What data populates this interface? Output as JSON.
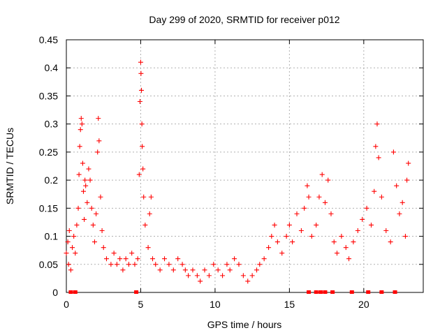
{
  "chart_data": {
    "type": "scatter",
    "title": "Day 299 of 2020, SRMTID for receiver p012",
    "xlabel": "GPS time / hours",
    "ylabel": "SRMTID / TECUs",
    "xlim": [
      0,
      24
    ],
    "ylim": [
      0,
      0.45
    ],
    "xticks": [
      0,
      5,
      10,
      15,
      20
    ],
    "xtick_labels": [
      "0",
      "5",
      "10",
      "15",
      "20"
    ],
    "yticks": [
      0,
      0.05,
      0.1,
      0.15,
      0.2,
      0.25,
      0.3,
      0.35,
      0.4,
      0.45
    ],
    "ytick_labels": [
      "0",
      "0.05",
      "0.1",
      "0.15",
      "0.2",
      "0.25",
      "0.3",
      "0.35",
      "0.4",
      "0.45"
    ],
    "grid": true,
    "marker": "+",
    "color": "#ff0000",
    "series": [
      {
        "name": "SRMTID",
        "points": [
          [
            0.0,
            0.07
          ],
          [
            0.1,
            0.09
          ],
          [
            0.15,
            0.05
          ],
          [
            0.2,
            0.11
          ],
          [
            0.3,
            0.04
          ],
          [
            0.4,
            0.08
          ],
          [
            0.5,
            0.1
          ],
          [
            0.6,
            0.07
          ],
          [
            0.7,
            0.12
          ],
          [
            0.8,
            0.15
          ],
          [
            0.85,
            0.21
          ],
          [
            0.9,
            0.26
          ],
          [
            0.95,
            0.29
          ],
          [
            1.0,
            0.31
          ],
          [
            1.05,
            0.3
          ],
          [
            1.1,
            0.23
          ],
          [
            1.15,
            0.18
          ],
          [
            1.2,
            0.13
          ],
          [
            1.25,
            0.2
          ],
          [
            1.3,
            0.19
          ],
          [
            1.4,
            0.16
          ],
          [
            1.5,
            0.22
          ],
          [
            1.6,
            0.2
          ],
          [
            1.7,
            0.15
          ],
          [
            1.8,
            0.12
          ],
          [
            1.9,
            0.09
          ],
          [
            2.0,
            0.14
          ],
          [
            2.1,
            0.25
          ],
          [
            2.15,
            0.31
          ],
          [
            2.2,
            0.27
          ],
          [
            2.3,
            0.17
          ],
          [
            2.4,
            0.11
          ],
          [
            2.5,
            0.08
          ],
          [
            2.7,
            0.06
          ],
          [
            3.0,
            0.05
          ],
          [
            3.2,
            0.07
          ],
          [
            3.4,
            0.05
          ],
          [
            3.6,
            0.06
          ],
          [
            3.8,
            0.04
          ],
          [
            4.0,
            0.06
          ],
          [
            4.2,
            0.05
          ],
          [
            4.4,
            0.07
          ],
          [
            4.6,
            0.05
          ],
          [
            4.8,
            0.06
          ],
          [
            4.9,
            0.21
          ],
          [
            4.95,
            0.34
          ],
          [
            5.0,
            0.41
          ],
          [
            5.02,
            0.39
          ],
          [
            5.05,
            0.36
          ],
          [
            5.08,
            0.3
          ],
          [
            5.1,
            0.26
          ],
          [
            5.15,
            0.22
          ],
          [
            5.2,
            0.17
          ],
          [
            5.3,
            0.12
          ],
          [
            5.5,
            0.08
          ],
          [
            5.6,
            0.14
          ],
          [
            5.7,
            0.17
          ],
          [
            5.8,
            0.06
          ],
          [
            6.0,
            0.05
          ],
          [
            6.3,
            0.04
          ],
          [
            6.6,
            0.06
          ],
          [
            6.9,
            0.05
          ],
          [
            7.2,
            0.04
          ],
          [
            7.5,
            0.06
          ],
          [
            7.8,
            0.05
          ],
          [
            8.0,
            0.04
          ],
          [
            8.2,
            0.03
          ],
          [
            8.5,
            0.04
          ],
          [
            8.8,
            0.03
          ],
          [
            9.0,
            0.02
          ],
          [
            9.3,
            0.04
          ],
          [
            9.6,
            0.03
          ],
          [
            9.9,
            0.05
          ],
          [
            10.2,
            0.04
          ],
          [
            10.5,
            0.03
          ],
          [
            10.8,
            0.05
          ],
          [
            11.0,
            0.04
          ],
          [
            11.3,
            0.06
          ],
          [
            11.6,
            0.05
          ],
          [
            11.9,
            0.03
          ],
          [
            12.2,
            0.02
          ],
          [
            12.5,
            0.03
          ],
          [
            12.8,
            0.04
          ],
          [
            13.0,
            0.05
          ],
          [
            13.3,
            0.06
          ],
          [
            13.6,
            0.08
          ],
          [
            13.8,
            0.1
          ],
          [
            14.0,
            0.12
          ],
          [
            14.2,
            0.09
          ],
          [
            14.5,
            0.07
          ],
          [
            14.8,
            0.1
          ],
          [
            15.0,
            0.12
          ],
          [
            15.2,
            0.09
          ],
          [
            15.5,
            0.14
          ],
          [
            15.8,
            0.11
          ],
          [
            16.0,
            0.15
          ],
          [
            16.2,
            0.19
          ],
          [
            16.3,
            0.17
          ],
          [
            16.5,
            0.1
          ],
          [
            16.8,
            0.12
          ],
          [
            17.0,
            0.17
          ],
          [
            17.2,
            0.21
          ],
          [
            17.4,
            0.16
          ],
          [
            17.6,
            0.2
          ],
          [
            17.8,
            0.14
          ],
          [
            18.0,
            0.09
          ],
          [
            18.2,
            0.07
          ],
          [
            18.5,
            0.1
          ],
          [
            18.8,
            0.08
          ],
          [
            19.0,
            0.06
          ],
          [
            19.3,
            0.09
          ],
          [
            19.6,
            0.11
          ],
          [
            19.9,
            0.13
          ],
          [
            20.2,
            0.15
          ],
          [
            20.5,
            0.12
          ],
          [
            20.7,
            0.18
          ],
          [
            20.8,
            0.26
          ],
          [
            20.9,
            0.3
          ],
          [
            21.0,
            0.24
          ],
          [
            21.2,
            0.17
          ],
          [
            21.5,
            0.11
          ],
          [
            21.8,
            0.09
          ],
          [
            22.0,
            0.25
          ],
          [
            22.2,
            0.19
          ],
          [
            22.4,
            0.14
          ],
          [
            22.6,
            0.16
          ],
          [
            22.8,
            0.1
          ],
          [
            22.9,
            0.2
          ],
          [
            23.0,
            0.23
          ]
        ]
      }
    ],
    "zero_markers_x": [
      0.3,
      0.6,
      4.7,
      16.3,
      16.8,
      17.1,
      17.4,
      17.9,
      19.2,
      20.3,
      21.2,
      22.1
    ]
  }
}
